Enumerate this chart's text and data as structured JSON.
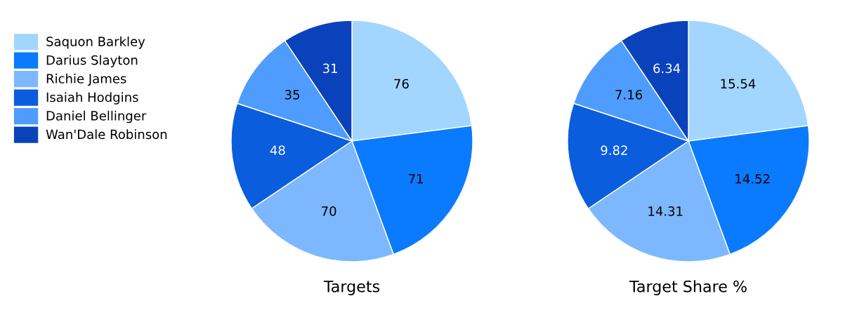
{
  "chart_data": [
    {
      "type": "pie",
      "title": "Targets",
      "categories": [
        "Saquon Barkley",
        "Darius Slayton",
        "Richie James",
        "Isaiah Hodgins",
        "Daniel Bellinger",
        "Wan'Dale Robinson"
      ],
      "values": [
        76,
        71,
        70,
        48,
        35,
        31
      ],
      "colors": [
        "#a3d6ff",
        "#0a7bff",
        "#7db8ff",
        "#0a5ddc",
        "#4f9cff",
        "#0a42bb"
      ],
      "data_labels": true,
      "legend": "left"
    },
    {
      "type": "pie",
      "title": "Target Share %",
      "categories": [
        null,
        null,
        null,
        null,
        null,
        null
      ],
      "values": [
        15.54,
        14.52,
        14.31,
        9.82,
        7.16,
        6.34
      ],
      "colors": [
        "#a3d6ff",
        "#0a7bff",
        "#7db8ff",
        "#0a5ddc",
        "#4f9cff",
        "#0a42bb"
      ],
      "data_labels": true
    }
  ]
}
